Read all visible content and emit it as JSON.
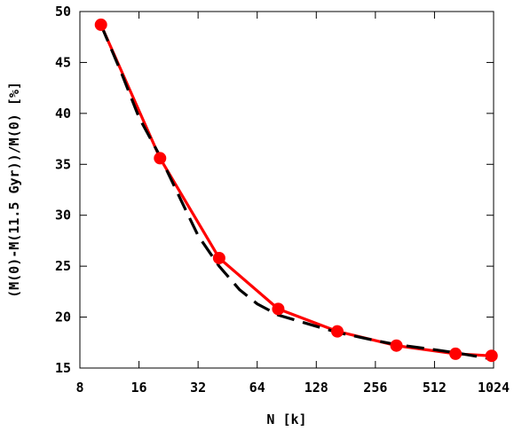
{
  "chart_data": {
    "type": "line",
    "xscale": "log2",
    "xlabel": "N [k]",
    "ylabel": "(M(0)-M(11.5 Gyr))/M(0) [%]",
    "xlim": [
      8,
      1024
    ],
    "ylim": [
      15,
      50
    ],
    "xticks": [
      8,
      16,
      32,
      64,
      128,
      256,
      512,
      1024
    ],
    "xtick_labels": [
      "8",
      "16",
      "32",
      "64",
      "128",
      "256",
      "512",
      "1024"
    ],
    "yticks": [
      15,
      20,
      25,
      30,
      35,
      40,
      45,
      50
    ],
    "ytick_labels": [
      "15",
      "20",
      "25",
      "30",
      "35",
      "40",
      "45",
      "50"
    ],
    "grid": false,
    "series": [
      {
        "style": "solid-with-markers",
        "color": "#ff0000",
        "x": [
          10.24,
          20.48,
          40.96,
          81.92,
          163.84,
          327.68,
          655.36,
          1000
        ],
        "y": [
          48.7,
          35.6,
          25.8,
          20.8,
          18.6,
          17.2,
          16.4,
          16.2
        ]
      },
      {
        "style": "dashed",
        "color": "#000000",
        "x": [
          10.24,
          13,
          16,
          20.48,
          26,
          32,
          40.96,
          52,
          64,
          81.92,
          128,
          163.84,
          256,
          327.68,
          512,
          655.36,
          1000
        ],
        "y": [
          48.7,
          44.0,
          39.6,
          35.8,
          31.6,
          28.0,
          25.0,
          22.7,
          21.3,
          20.2,
          19.1,
          18.5,
          17.7,
          17.3,
          16.8,
          16.5,
          15.9
        ]
      }
    ]
  }
}
